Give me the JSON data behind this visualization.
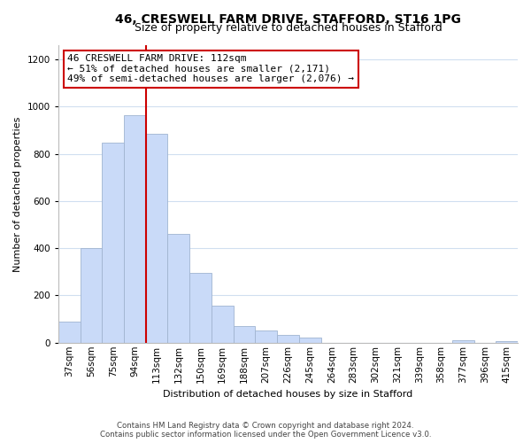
{
  "title": "46, CRESWELL FARM DRIVE, STAFFORD, ST16 1PG",
  "subtitle": "Size of property relative to detached houses in Stafford",
  "xlabel": "Distribution of detached houses by size in Stafford",
  "ylabel": "Number of detached properties",
  "bar_labels": [
    "37sqm",
    "56sqm",
    "75sqm",
    "94sqm",
    "113sqm",
    "132sqm",
    "150sqm",
    "169sqm",
    "188sqm",
    "207sqm",
    "226sqm",
    "245sqm",
    "264sqm",
    "283sqm",
    "302sqm",
    "321sqm",
    "339sqm",
    "358sqm",
    "377sqm",
    "396sqm",
    "415sqm"
  ],
  "bar_values": [
    90,
    400,
    848,
    965,
    883,
    460,
    295,
    158,
    70,
    50,
    33,
    20,
    0,
    0,
    0,
    0,
    0,
    0,
    10,
    0,
    8
  ],
  "bar_color": "#c9daf8",
  "bar_edge_color": "#a0b4d0",
  "marker_index": 4,
  "marker_line_color": "#cc0000",
  "annotation_line1": "46 CRESWELL FARM DRIVE: 112sqm",
  "annotation_line2": "← 51% of detached houses are smaller (2,171)",
  "annotation_line3": "49% of semi-detached houses are larger (2,076) →",
  "annotation_box_color": "#ffffff",
  "annotation_box_edge": "#cc0000",
  "ylim": [
    0,
    1260
  ],
  "yticks": [
    0,
    200,
    400,
    600,
    800,
    1000,
    1200
  ],
  "footer_line1": "Contains HM Land Registry data © Crown copyright and database right 2024.",
  "footer_line2": "Contains public sector information licensed under the Open Government Licence v3.0.",
  "bg_color": "#ffffff",
  "grid_color": "#d0dff0",
  "title_fontsize": 10,
  "subtitle_fontsize": 9,
  "ylabel_fontsize": 8,
  "xlabel_fontsize": 8,
  "tick_fontsize": 7.5,
  "annotation_fontsize": 8
}
